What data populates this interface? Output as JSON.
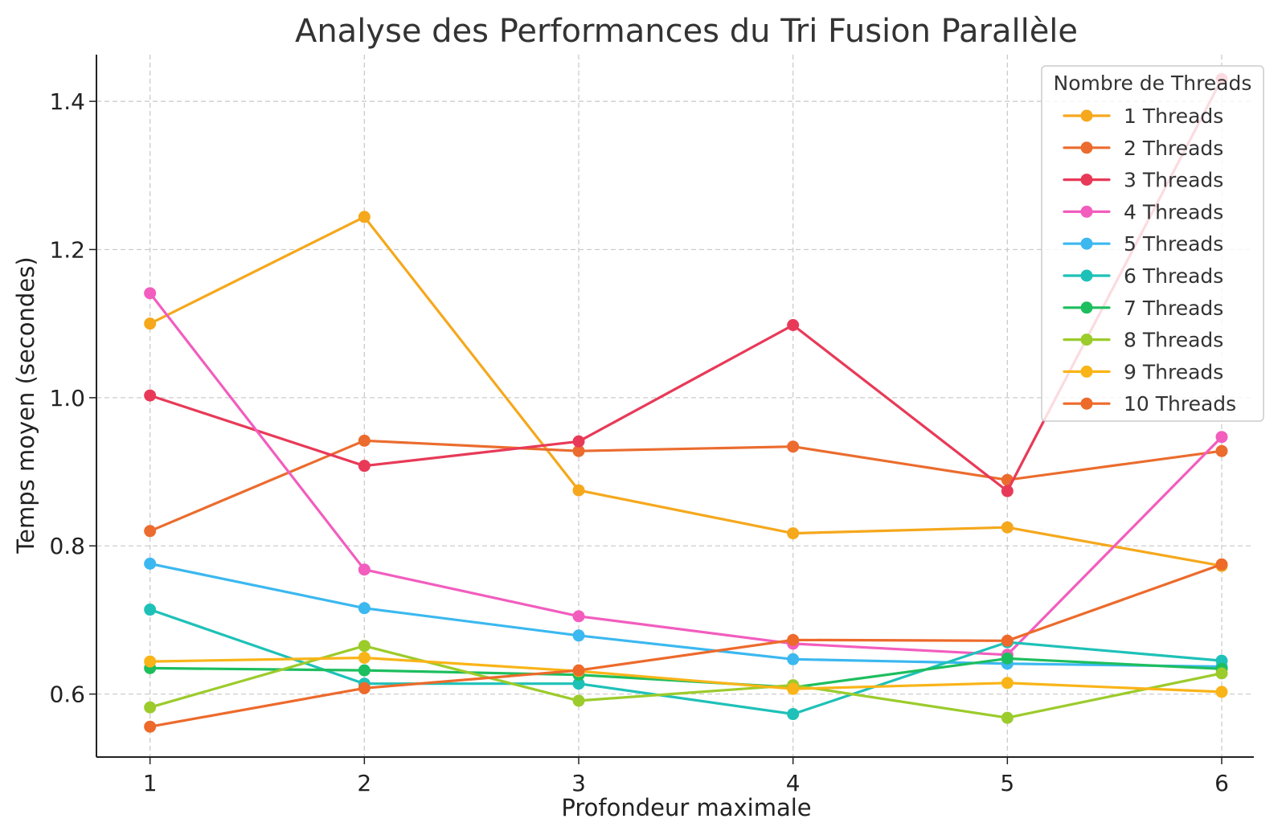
{
  "chart_data": {
    "type": "line",
    "title": "Analyse des Performances du Tri Fusion Parallèle",
    "xlabel": "Profondeur maximale",
    "ylabel": "Temps moyen (secondes)",
    "x": [
      1,
      2,
      3,
      4,
      5,
      6
    ],
    "x_ticks": [
      "1",
      "2",
      "3",
      "4",
      "5",
      "6"
    ],
    "xlim": [
      0.75,
      6.15
    ],
    "y_ticks": [
      "0.6",
      "0.8",
      "1.0",
      "1.2",
      "1.4"
    ],
    "y_tick_values": [
      0.6,
      0.8,
      1.0,
      1.2,
      1.4
    ],
    "ylim": [
      0.515,
      1.463
    ],
    "grid": true,
    "legend": {
      "title": "Nombre de Threads",
      "placement": "top-right"
    },
    "series": [
      {
        "name": "1 Threads",
        "color": "#F5A81C",
        "values": [
          1.1,
          1.244,
          0.875,
          0.817,
          0.825,
          0.773
        ]
      },
      {
        "name": "2 Threads",
        "color": "#EB6C2E",
        "values": [
          0.82,
          0.942,
          0.928,
          0.934,
          0.889,
          0.928
        ]
      },
      {
        "name": "3 Threads",
        "color": "#E83A58",
        "values": [
          1.003,
          0.908,
          0.941,
          1.098,
          0.874,
          1.43
        ]
      },
      {
        "name": "4 Threads",
        "color": "#F25DBE",
        "values": [
          1.141,
          0.768,
          0.705,
          0.668,
          0.653,
          0.947
        ]
      },
      {
        "name": "5 Threads",
        "color": "#3BB8F0",
        "values": [
          0.776,
          0.716,
          0.679,
          0.647,
          0.641,
          0.637
        ]
      },
      {
        "name": "6 Threads",
        "color": "#1EC1B8",
        "values": [
          0.714,
          0.614,
          0.614,
          0.573,
          0.67,
          0.645
        ]
      },
      {
        "name": "7 Threads",
        "color": "#1DBE5E",
        "values": [
          0.635,
          0.632,
          0.626,
          0.609,
          0.648,
          0.634
        ]
      },
      {
        "name": "8 Threads",
        "color": "#9CCB2C",
        "values": [
          0.582,
          0.665,
          0.591,
          0.612,
          0.568,
          0.628
        ]
      },
      {
        "name": "9 Threads",
        "color": "#F9B418",
        "values": [
          0.644,
          0.649,
          0.631,
          0.607,
          0.615,
          0.603
        ]
      },
      {
        "name": "10 Threads",
        "color": "#ED6A2B",
        "values": [
          0.556,
          0.608,
          0.632,
          0.673,
          0.672,
          0.775
        ]
      }
    ]
  }
}
